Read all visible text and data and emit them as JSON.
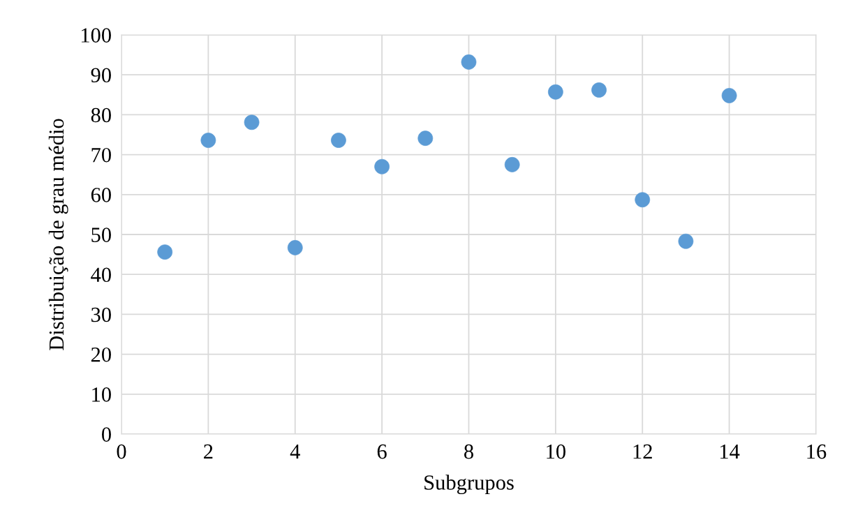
{
  "chart_data": {
    "type": "scatter",
    "xlabel": "Subgrupos",
    "ylabel": "Distribuição de grau médio",
    "x": [
      1,
      2,
      3,
      4,
      5,
      6,
      7,
      8,
      9,
      10,
      11,
      12,
      13,
      14
    ],
    "series": [
      {
        "color": "#5b9bd5",
        "values": [
          45.6,
          73.6,
          78.1,
          46.7,
          73.6,
          67.0,
          74.1,
          93.2,
          67.5,
          85.7,
          86.2,
          58.7,
          48.3,
          84.8
        ]
      }
    ],
    "xlim": [
      0,
      16
    ],
    "xticks": [
      0,
      2,
      4,
      6,
      8,
      10,
      12,
      14,
      16
    ],
    "ylim": [
      0,
      100
    ],
    "yticks": [
      0,
      10,
      20,
      30,
      40,
      50,
      60,
      70,
      80,
      90,
      100
    ],
    "grid": true,
    "marker": "circle"
  }
}
